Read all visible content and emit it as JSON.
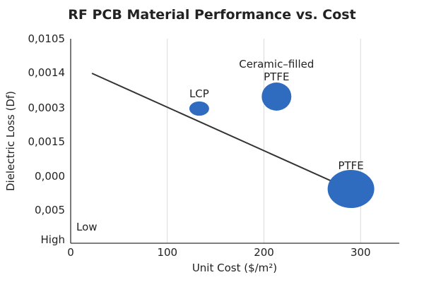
{
  "chart_data": {
    "type": "scatter",
    "title": "RF PCB Material Performance vs. Cost",
    "xlabel": "Unit Cost ($/m²)",
    "ylabel": "Dielectric Loss (Df)",
    "xlim": [
      0,
      340
    ],
    "x_ticks": [
      0,
      100,
      200,
      300
    ],
    "y_tick_labels": [
      "0,0105",
      "0,0014",
      "0,0003",
      "0,0015",
      "0,000",
      "0,005",
      "High"
    ],
    "grid": "vertical",
    "points": [
      {
        "label": "LCP",
        "x": 133,
        "y": "0,0003",
        "size": "small",
        "color": "#2f6bbf"
      },
      {
        "label": "Ceramic–filled PTFE",
        "label_lines": [
          "Ceramic–filled",
          "PTFE"
        ],
        "x": 213,
        "y": "between 0,0014 and 0,0003",
        "size": "medium",
        "color": "#2f6bbf"
      },
      {
        "label": "PTFE",
        "x": 290,
        "y": "below 0,000",
        "size": "large",
        "color": "#2f6bbf"
      }
    ],
    "trend_line": {
      "from_x": 22,
      "to_x": 288,
      "color": "#333333"
    },
    "annotations": [
      {
        "text": "Low"
      }
    ]
  }
}
